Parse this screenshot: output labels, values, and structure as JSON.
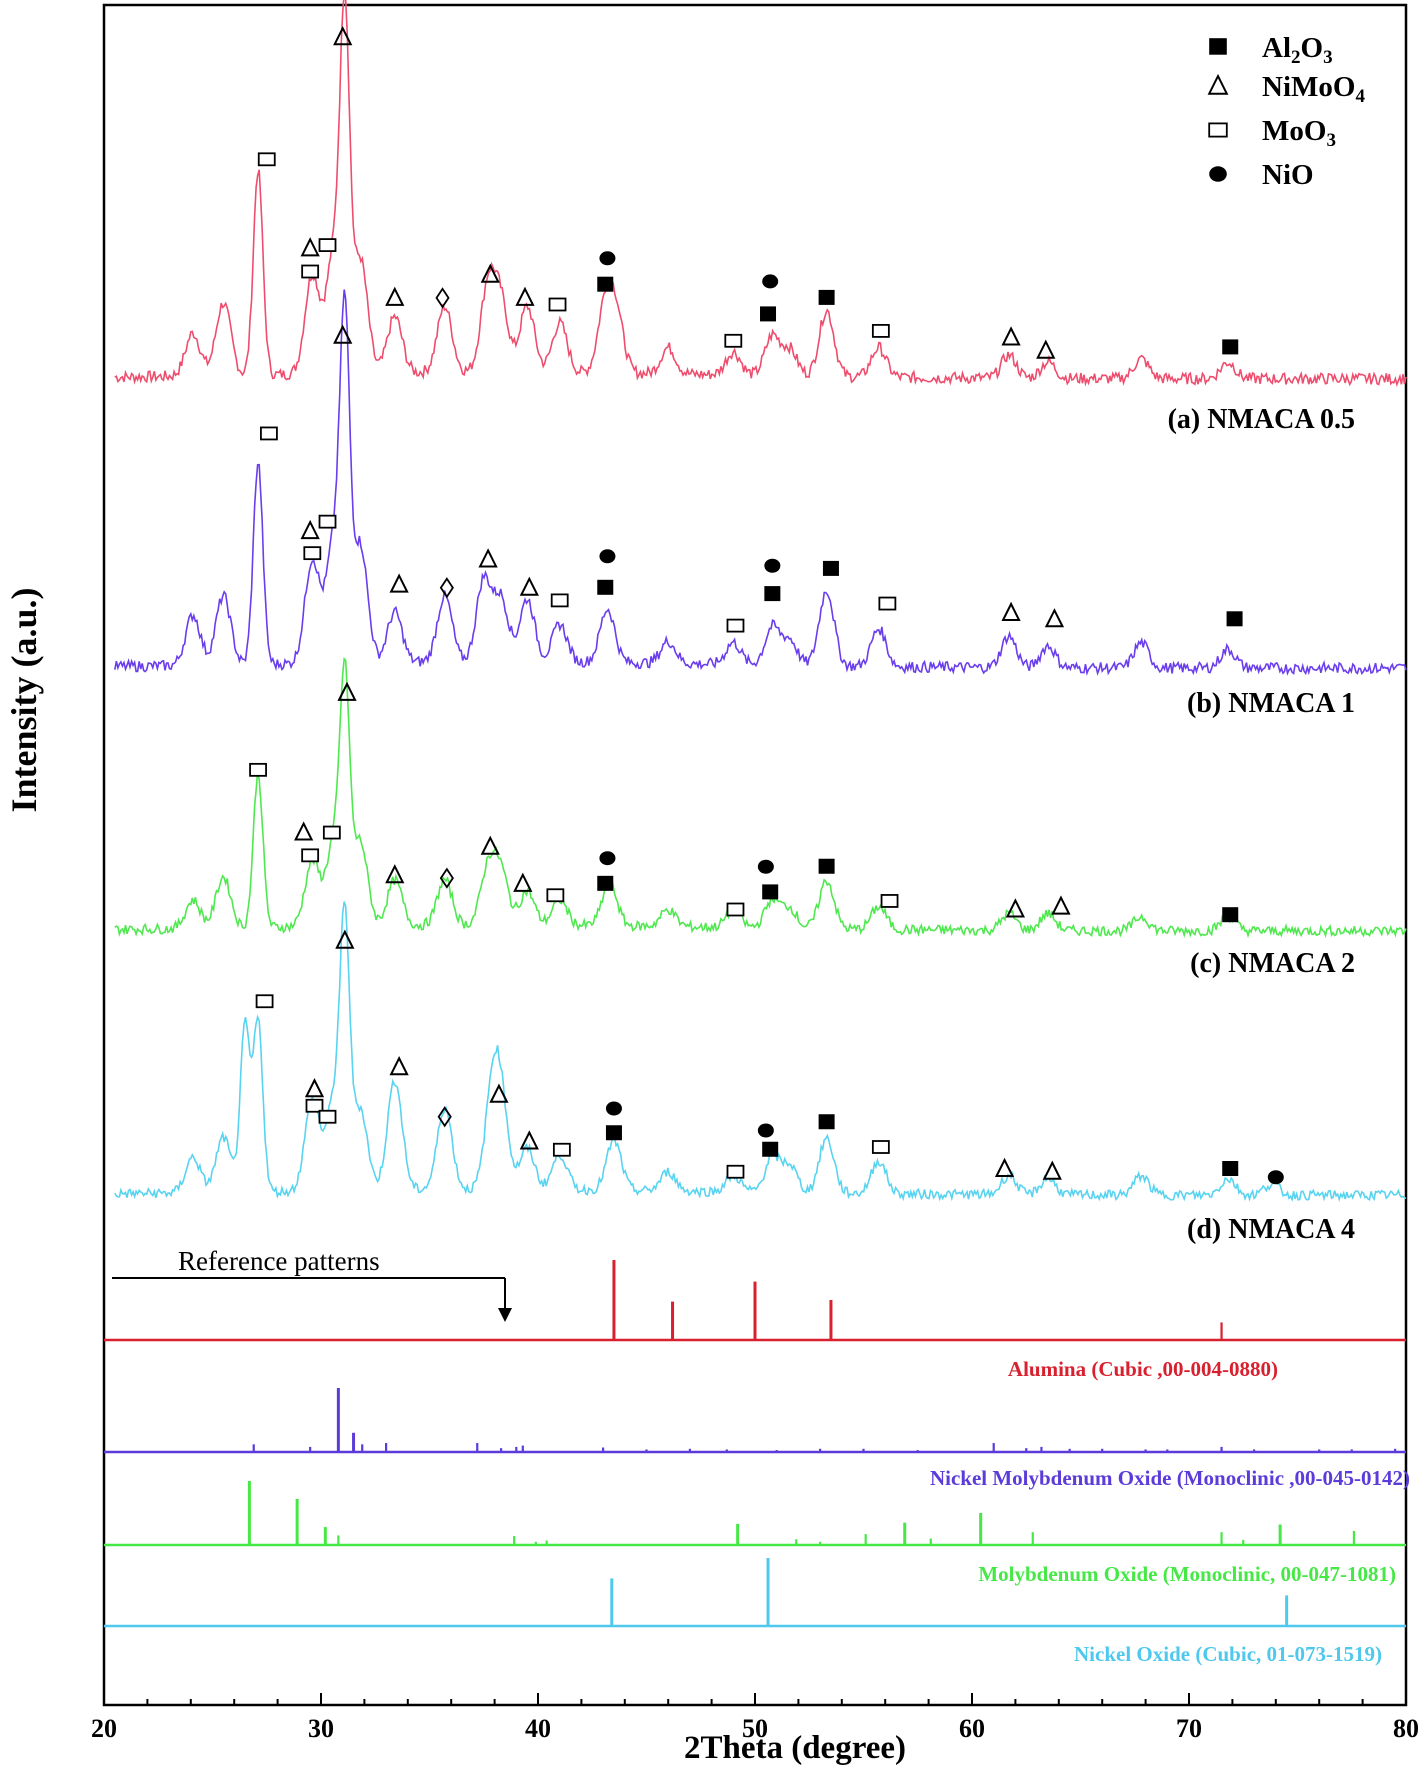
{
  "chart_data": {
    "type": "line",
    "xlabel": "2Theta (degree)",
    "ylabel": "Intensity (a.u.)",
    "xlim": [
      20,
      80
    ],
    "x_ticks": [
      20,
      30,
      40,
      50,
      60,
      70,
      80
    ],
    "grid": false,
    "legend": {
      "placement": "top-right",
      "entries": [
        {
          "symbol": "filled-square",
          "base": "Al",
          "sub1": "2",
          "mid": "O",
          "sub2": "3"
        },
        {
          "symbol": "triangle",
          "base": "NiMoO",
          "sub1": "4",
          "mid": "",
          "sub2": ""
        },
        {
          "symbol": "open-square",
          "base": "MoO",
          "sub1": "3",
          "mid": "",
          "sub2": ""
        },
        {
          "symbol": "filled-circle",
          "base": "NiO",
          "sub1": "",
          "mid": "",
          "sub2": ""
        }
      ]
    },
    "series": [
      {
        "name": "(a) NMACA 0.5",
        "color": "#ee4d6d",
        "level": 3,
        "peaks": [
          [
            24.1,
            0.13
          ],
          [
            25.5,
            0.22
          ],
          [
            27.1,
            0.62
          ],
          [
            29.6,
            0.3
          ],
          [
            30.6,
            0.37
          ],
          [
            31.1,
            1.0
          ],
          [
            31.8,
            0.35
          ],
          [
            33.4,
            0.17
          ],
          [
            35.7,
            0.2
          ],
          [
            37.7,
            0.26
          ],
          [
            38.3,
            0.2
          ],
          [
            39.5,
            0.2
          ],
          [
            41.0,
            0.15
          ],
          [
            43.1,
            0.2
          ],
          [
            43.6,
            0.17
          ],
          [
            46.0,
            0.08
          ],
          [
            49.0,
            0.07
          ],
          [
            50.8,
            0.12
          ],
          [
            51.6,
            0.08
          ],
          [
            53.3,
            0.2
          ],
          [
            55.7,
            0.09
          ],
          [
            61.7,
            0.07
          ],
          [
            63.5,
            0.05
          ],
          [
            67.8,
            0.06
          ],
          [
            71.8,
            0.05
          ]
        ],
        "markers": [
          {
            "s": "triangle",
            "x": 31.0,
            "y": 1.06
          },
          {
            "s": "open-square",
            "x": 27.5,
            "y": 0.69
          },
          {
            "s": "triangle",
            "x": 29.5,
            "y": 0.42
          },
          {
            "s": "open-square",
            "x": 30.3,
            "y": 0.43
          },
          {
            "s": "open-square",
            "x": 29.5,
            "y": 0.35
          },
          {
            "s": "triangle",
            "x": 33.4,
            "y": 0.27
          },
          {
            "s": "diamond",
            "x": 35.6,
            "y": 0.27
          },
          {
            "s": "triangle",
            "x": 37.8,
            "y": 0.34
          },
          {
            "s": "triangle",
            "x": 39.4,
            "y": 0.27
          },
          {
            "s": "open-square",
            "x": 40.9,
            "y": 0.25
          },
          {
            "s": "filled-circle",
            "x": 43.2,
            "y": 0.39
          },
          {
            "s": "filled-square",
            "x": 43.1,
            "y": 0.31
          },
          {
            "s": "filled-circle",
            "x": 50.7,
            "y": 0.32
          },
          {
            "s": "filled-square",
            "x": 50.6,
            "y": 0.22
          },
          {
            "s": "filled-square",
            "x": 53.3,
            "y": 0.27
          },
          {
            "s": "open-square",
            "x": 49.0,
            "y": 0.14
          },
          {
            "s": "open-square",
            "x": 55.8,
            "y": 0.17
          },
          {
            "s": "triangle",
            "x": 61.8,
            "y": 0.15
          },
          {
            "s": "triangle",
            "x": 63.4,
            "y": 0.11
          },
          {
            "s": "filled-square",
            "x": 71.9,
            "y": 0.12
          }
        ],
        "label": "(a) NMACA 0.5"
      },
      {
        "name": "(b) NMACA 1",
        "color": "#6a3ded",
        "level": 2,
        "peaks": [
          [
            24.1,
            0.16
          ],
          [
            25.5,
            0.22
          ],
          [
            27.1,
            0.64
          ],
          [
            29.6,
            0.33
          ],
          [
            30.6,
            0.39
          ],
          [
            31.1,
            1.0
          ],
          [
            31.8,
            0.38
          ],
          [
            33.4,
            0.16
          ],
          [
            35.7,
            0.21
          ],
          [
            37.5,
            0.26
          ],
          [
            38.3,
            0.2
          ],
          [
            39.5,
            0.2
          ],
          [
            41.0,
            0.12
          ],
          [
            43.2,
            0.17
          ],
          [
            46.0,
            0.07
          ],
          [
            49.0,
            0.07
          ],
          [
            50.8,
            0.12
          ],
          [
            51.6,
            0.08
          ],
          [
            53.3,
            0.24
          ],
          [
            55.7,
            0.12
          ],
          [
            61.7,
            0.1
          ],
          [
            63.5,
            0.07
          ],
          [
            67.8,
            0.08
          ],
          [
            71.8,
            0.06
          ]
        ],
        "markers": [
          {
            "s": "triangle",
            "x": 31.0,
            "y": 1.08
          },
          {
            "s": "open-square",
            "x": 27.6,
            "y": 0.77
          },
          {
            "s": "triangle",
            "x": 29.5,
            "y": 0.46
          },
          {
            "s": "open-square",
            "x": 30.3,
            "y": 0.49
          },
          {
            "s": "open-square",
            "x": 29.6,
            "y": 0.39
          },
          {
            "s": "triangle",
            "x": 33.6,
            "y": 0.29
          },
          {
            "s": "diamond",
            "x": 35.8,
            "y": 0.28
          },
          {
            "s": "triangle",
            "x": 37.7,
            "y": 0.37
          },
          {
            "s": "triangle",
            "x": 39.6,
            "y": 0.28
          },
          {
            "s": "open-square",
            "x": 41.0,
            "y": 0.24
          },
          {
            "s": "filled-circle",
            "x": 43.2,
            "y": 0.38
          },
          {
            "s": "filled-square",
            "x": 43.1,
            "y": 0.28
          },
          {
            "s": "filled-circle",
            "x": 50.8,
            "y": 0.35
          },
          {
            "s": "filled-square",
            "x": 50.8,
            "y": 0.26
          },
          {
            "s": "filled-square",
            "x": 53.5,
            "y": 0.34
          },
          {
            "s": "open-square",
            "x": 49.1,
            "y": 0.16
          },
          {
            "s": "open-square",
            "x": 56.1,
            "y": 0.23
          },
          {
            "s": "triangle",
            "x": 61.8,
            "y": 0.2
          },
          {
            "s": "triangle",
            "x": 63.8,
            "y": 0.18
          },
          {
            "s": "filled-square",
            "x": 72.1,
            "y": 0.18
          }
        ],
        "label": "(b) NMACA 1"
      },
      {
        "name": "(c) NMACA 2",
        "color": "#4fe84f",
        "level": 1,
        "peaks": [
          [
            24.1,
            0.1
          ],
          [
            25.5,
            0.18
          ],
          [
            27.1,
            0.54
          ],
          [
            29.6,
            0.23
          ],
          [
            30.6,
            0.3
          ],
          [
            31.1,
            0.8
          ],
          [
            31.8,
            0.3
          ],
          [
            33.4,
            0.16
          ],
          [
            35.7,
            0.16
          ],
          [
            37.7,
            0.2
          ],
          [
            38.3,
            0.18
          ],
          [
            39.5,
            0.12
          ],
          [
            41.0,
            0.09
          ],
          [
            43.3,
            0.15
          ],
          [
            46.0,
            0.06
          ],
          [
            49.0,
            0.06
          ],
          [
            50.8,
            0.1
          ],
          [
            51.6,
            0.07
          ],
          [
            53.3,
            0.17
          ],
          [
            55.7,
            0.08
          ],
          [
            61.7,
            0.06
          ],
          [
            63.5,
            0.06
          ],
          [
            67.8,
            0.05
          ],
          [
            71.8,
            0.05
          ]
        ],
        "markers": [
          {
            "s": "triangle",
            "x": 31.2,
            "y": 0.86
          },
          {
            "s": "open-square",
            "x": 27.1,
            "y": 0.59
          },
          {
            "s": "triangle",
            "x": 29.2,
            "y": 0.37
          },
          {
            "s": "open-square",
            "x": 30.5,
            "y": 0.37
          },
          {
            "s": "open-square",
            "x": 29.5,
            "y": 0.29
          },
          {
            "s": "triangle",
            "x": 33.4,
            "y": 0.22
          },
          {
            "s": "diamond",
            "x": 35.8,
            "y": 0.21
          },
          {
            "s": "triangle",
            "x": 37.8,
            "y": 0.32
          },
          {
            "s": "triangle",
            "x": 39.3,
            "y": 0.19
          },
          {
            "s": "open-square",
            "x": 40.8,
            "y": 0.15
          },
          {
            "s": "filled-circle",
            "x": 43.2,
            "y": 0.28
          },
          {
            "s": "filled-square",
            "x": 43.1,
            "y": 0.19
          },
          {
            "s": "filled-circle",
            "x": 50.5,
            "y": 0.25
          },
          {
            "s": "filled-square",
            "x": 50.7,
            "y": 0.16
          },
          {
            "s": "filled-square",
            "x": 53.3,
            "y": 0.25
          },
          {
            "s": "open-square",
            "x": 49.1,
            "y": 0.1
          },
          {
            "s": "open-square",
            "x": 56.2,
            "y": 0.13
          },
          {
            "s": "triangle",
            "x": 62.0,
            "y": 0.1
          },
          {
            "s": "triangle",
            "x": 64.1,
            "y": 0.11
          },
          {
            "s": "filled-square",
            "x": 71.9,
            "y": 0.08
          }
        ],
        "label": "(c) NMACA 2"
      },
      {
        "name": "(d) NMACA 4",
        "color": "#58d3f0",
        "level": 0,
        "peaks": [
          [
            24.1,
            0.13
          ],
          [
            25.5,
            0.2
          ],
          [
            26.5,
            0.6
          ],
          [
            27.1,
            0.62
          ],
          [
            29.6,
            0.33
          ],
          [
            30.6,
            0.33
          ],
          [
            31.1,
            0.9
          ],
          [
            31.8,
            0.3
          ],
          [
            33.4,
            0.4
          ],
          [
            35.7,
            0.3
          ],
          [
            37.9,
            0.33
          ],
          [
            38.3,
            0.28
          ],
          [
            39.5,
            0.15
          ],
          [
            41.0,
            0.13
          ],
          [
            43.5,
            0.18
          ],
          [
            46.0,
            0.07
          ],
          [
            49.0,
            0.06
          ],
          [
            50.8,
            0.13
          ],
          [
            51.6,
            0.1
          ],
          [
            53.3,
            0.2
          ],
          [
            55.7,
            0.12
          ],
          [
            61.7,
            0.07
          ],
          [
            63.5,
            0.06
          ],
          [
            67.8,
            0.07
          ],
          [
            71.8,
            0.06
          ],
          [
            73.8,
            0.04
          ]
        ],
        "markers": [
          {
            "s": "triangle",
            "x": 31.1,
            "y": 0.95
          },
          {
            "s": "open-square",
            "x": 27.4,
            "y": 0.73
          },
          {
            "s": "triangle",
            "x": 29.7,
            "y": 0.41
          },
          {
            "s": "open-square",
            "x": 29.7,
            "y": 0.35
          },
          {
            "s": "open-square",
            "x": 30.3,
            "y": 0.31
          },
          {
            "s": "triangle",
            "x": 33.6,
            "y": 0.49
          },
          {
            "s": "diamond",
            "x": 35.7,
            "y": 0.31
          },
          {
            "s": "triangle",
            "x": 38.2,
            "y": 0.39
          },
          {
            "s": "triangle",
            "x": 39.6,
            "y": 0.22
          },
          {
            "s": "open-square",
            "x": 41.1,
            "y": 0.19
          },
          {
            "s": "filled-circle",
            "x": 43.5,
            "y": 0.34
          },
          {
            "s": "filled-square",
            "x": 43.5,
            "y": 0.25
          },
          {
            "s": "filled-circle",
            "x": 50.5,
            "y": 0.26
          },
          {
            "s": "filled-square",
            "x": 50.7,
            "y": 0.19
          },
          {
            "s": "filled-square",
            "x": 53.3,
            "y": 0.29
          },
          {
            "s": "open-square",
            "x": 49.1,
            "y": 0.11
          },
          {
            "s": "open-square",
            "x": 55.8,
            "y": 0.2
          },
          {
            "s": "triangle",
            "x": 61.5,
            "y": 0.12
          },
          {
            "s": "triangle",
            "x": 63.7,
            "y": 0.11
          },
          {
            "s": "filled-square",
            "x": 71.9,
            "y": 0.12
          },
          {
            "s": "filled-circle",
            "x": 74.0,
            "y": 0.09
          }
        ],
        "label": "(d) NMACA 4"
      }
    ],
    "reference_title": "Reference patterns",
    "references": [
      {
        "label": "Alumina (Cubic ,00-004-0880)",
        "color": "#d9202e",
        "lines": [
          [
            43.5,
            1.0
          ],
          [
            46.2,
            0.48
          ],
          [
            50.0,
            0.73
          ],
          [
            53.5,
            0.5
          ],
          [
            71.5,
            0.22
          ]
        ]
      },
      {
        "label": "Nickel Molybdenum Oxide (Monoclinic ,00-045-0142)",
        "color": "#5b3bd9",
        "lines": [
          [
            26.9,
            0.12
          ],
          [
            29.5,
            0.08
          ],
          [
            30.8,
            1.0
          ],
          [
            31.5,
            0.3
          ],
          [
            31.9,
            0.12
          ],
          [
            33.0,
            0.14
          ],
          [
            37.2,
            0.14
          ],
          [
            38.3,
            0.06
          ],
          [
            39.0,
            0.08
          ],
          [
            39.3,
            0.1
          ],
          [
            43.0,
            0.07
          ],
          [
            45.0,
            0.04
          ],
          [
            47.0,
            0.05
          ],
          [
            48.7,
            0.04
          ],
          [
            51.0,
            0.03
          ],
          [
            53.0,
            0.05
          ],
          [
            55.0,
            0.05
          ],
          [
            57.5,
            0.03
          ],
          [
            61.0,
            0.14
          ],
          [
            62.5,
            0.06
          ],
          [
            63.2,
            0.08
          ],
          [
            64.5,
            0.05
          ],
          [
            66.0,
            0.05
          ],
          [
            68.0,
            0.04
          ],
          [
            69.0,
            0.04
          ],
          [
            71.5,
            0.08
          ],
          [
            73.0,
            0.04
          ],
          [
            76.0,
            0.04
          ],
          [
            77.5,
            0.04
          ],
          [
            79.5,
            0.05
          ]
        ]
      },
      {
        "label": "Molybdenum Oxide (Monoclinic, 00-047-1081)",
        "color": "#46e846",
        "lines": [
          [
            26.7,
            1.0
          ],
          [
            28.9,
            0.72
          ],
          [
            30.2,
            0.28
          ],
          [
            30.8,
            0.15
          ],
          [
            38.9,
            0.14
          ],
          [
            39.9,
            0.05
          ],
          [
            40.4,
            0.07
          ],
          [
            49.2,
            0.33
          ],
          [
            51.9,
            0.09
          ],
          [
            53.0,
            0.05
          ],
          [
            55.1,
            0.17
          ],
          [
            56.9,
            0.35
          ],
          [
            58.1,
            0.1
          ],
          [
            60.4,
            0.5
          ],
          [
            62.8,
            0.2
          ],
          [
            71.5,
            0.2
          ],
          [
            72.5,
            0.08
          ],
          [
            74.2,
            0.32
          ],
          [
            77.6,
            0.22
          ]
        ]
      },
      {
        "label": "Nickel Oxide (Cubic, 01-073-1519)",
        "color": "#4fc8ee",
        "lines": [
          [
            43.4,
            0.7
          ],
          [
            50.6,
            1.0
          ],
          [
            74.5,
            0.45
          ]
        ]
      }
    ]
  }
}
